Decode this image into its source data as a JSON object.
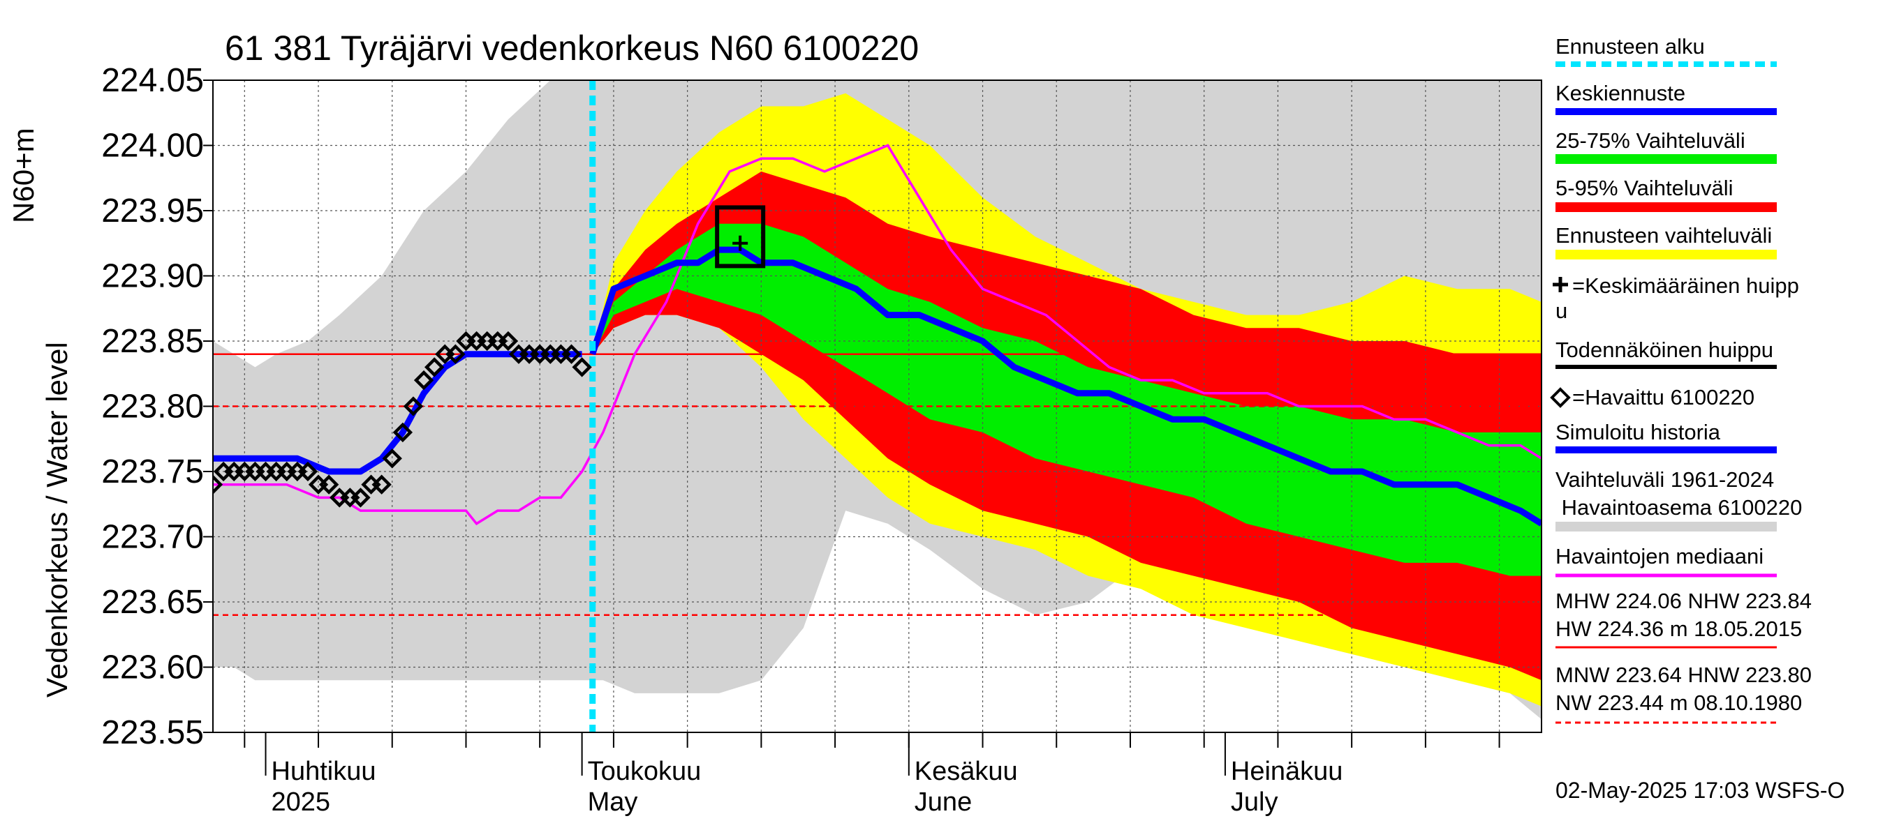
{
  "chart_data": {
    "type": "line",
    "title": "61 381 Tyräjärvi vedenkorkeus N60 6100220",
    "ylabel": [
      "Vedenkorkeus / Water level",
      "N60+m"
    ],
    "ylim": [
      223.55,
      224.05
    ],
    "yticks": [
      "223.55",
      "223.60",
      "223.65",
      "223.70",
      "223.75",
      "223.80",
      "223.85",
      "223.90",
      "223.95",
      "224.00",
      "224.05"
    ],
    "xlim": [
      "2025-03-27",
      "2025-07-31"
    ],
    "month_labels": [
      {
        "date": "2025-04-01",
        "fi": "Huhtikuu",
        "en": "2025"
      },
      {
        "date": "2025-05-01",
        "fi": "Toukokuu",
        "en": "May"
      },
      {
        "date": "2025-06-01",
        "fi": "Kesäkuu",
        "en": "June"
      },
      {
        "date": "2025-07-01",
        "fi": "Heinäkuu",
        "en": "July"
      }
    ],
    "forecast_start": "2025-05-02",
    "reference_lines": [
      {
        "label": "MHW",
        "value": 224.06,
        "style": "solid"
      },
      {
        "label": "NHW",
        "value": 223.84,
        "style": "solid"
      },
      {
        "label": "MNW",
        "value": 223.64,
        "style": "dashed"
      },
      {
        "label": "HNW",
        "value": 223.8,
        "style": "dashed"
      }
    ],
    "history_range": {
      "x": [
        "2025-03-27",
        "2025-03-29",
        "2025-03-31",
        "2025-04-02",
        "2025-04-05",
        "2025-04-08",
        "2025-04-12",
        "2025-04-16",
        "2025-04-20",
        "2025-04-24",
        "2025-04-28",
        "2025-04-30",
        "2025-05-01",
        "2025-05-03",
        "2025-05-06",
        "2025-05-10",
        "2025-05-14",
        "2025-05-18",
        "2025-05-22",
        "2025-05-26",
        "2025-05-30",
        "2025-06-03",
        "2025-06-08",
        "2025-06-13",
        "2025-06-18",
        "2025-06-23",
        "2025-06-28",
        "2025-07-03",
        "2025-07-08",
        "2025-07-13",
        "2025-07-18",
        "2025-07-23",
        "2025-07-28",
        "2025-07-31"
      ],
      "upper": [
        223.85,
        223.84,
        223.83,
        223.84,
        223.85,
        223.87,
        223.9,
        223.95,
        223.98,
        224.02,
        224.05,
        224.06,
        224.06,
        224.06,
        224.06,
        224.06,
        224.06,
        224.06,
        224.06,
        224.06,
        224.06,
        224.06,
        224.06,
        224.06,
        224.06,
        224.06,
        224.06,
        224.06,
        224.06,
        224.06,
        224.06,
        224.06,
        224.06,
        224.06
      ],
      "lower": [
        223.6,
        223.6,
        223.59,
        223.59,
        223.59,
        223.59,
        223.59,
        223.59,
        223.59,
        223.59,
        223.59,
        223.59,
        223.59,
        223.59,
        223.58,
        223.58,
        223.58,
        223.59,
        223.63,
        223.72,
        223.71,
        223.69,
        223.66,
        223.64,
        223.65,
        223.68,
        223.67,
        223.65,
        223.62,
        223.61,
        223.6,
        223.59,
        223.58,
        223.56
      ]
    },
    "forecast_range": {
      "x": [
        "2025-05-02",
        "2025-05-04",
        "2025-05-07",
        "2025-05-10",
        "2025-05-14",
        "2025-05-18",
        "2025-05-22",
        "2025-05-26",
        "2025-05-30",
        "2025-06-03",
        "2025-06-08",
        "2025-06-13",
        "2025-06-18",
        "2025-06-23",
        "2025-06-28",
        "2025-07-03",
        "2025-07-08",
        "2025-07-13",
        "2025-07-18",
        "2025-07-23",
        "2025-07-28",
        "2025-07-31"
      ],
      "upper": [
        223.84,
        223.91,
        223.95,
        223.98,
        224.01,
        224.03,
        224.03,
        224.04,
        224.02,
        224.0,
        223.96,
        223.93,
        223.91,
        223.89,
        223.88,
        223.87,
        223.87,
        223.88,
        223.9,
        223.89,
        223.89,
        223.88
      ],
      "lower": [
        223.84,
        223.86,
        223.87,
        223.87,
        223.86,
        223.83,
        223.79,
        223.76,
        223.73,
        223.71,
        223.7,
        223.69,
        223.67,
        223.66,
        223.64,
        223.63,
        223.62,
        223.61,
        223.6,
        223.59,
        223.58,
        223.57
      ]
    },
    "band_5_95": {
      "upper": [
        223.84,
        223.89,
        223.92,
        223.94,
        223.96,
        223.98,
        223.97,
        223.96,
        223.94,
        223.93,
        223.92,
        223.91,
        223.9,
        223.89,
        223.87,
        223.86,
        223.86,
        223.85,
        223.85,
        223.84,
        223.84,
        223.84
      ],
      "lower": [
        223.84,
        223.86,
        223.87,
        223.87,
        223.86,
        223.84,
        223.82,
        223.79,
        223.76,
        223.74,
        223.72,
        223.71,
        223.7,
        223.68,
        223.67,
        223.66,
        223.65,
        223.63,
        223.62,
        223.61,
        223.6,
        223.59
      ]
    },
    "band_25_75": {
      "upper": [
        223.84,
        223.88,
        223.9,
        223.92,
        223.94,
        223.94,
        223.93,
        223.91,
        223.89,
        223.88,
        223.86,
        223.85,
        223.83,
        223.82,
        223.81,
        223.8,
        223.8,
        223.79,
        223.79,
        223.78,
        223.78,
        223.78
      ],
      "lower": [
        223.84,
        223.87,
        223.88,
        223.89,
        223.88,
        223.87,
        223.85,
        223.83,
        223.81,
        223.79,
        223.78,
        223.76,
        223.75,
        223.74,
        223.73,
        223.71,
        223.7,
        223.69,
        223.68,
        223.68,
        223.67,
        223.67
      ]
    },
    "series": [
      {
        "name": "Havaittu 6100220",
        "color": "#000000",
        "marker": "diamond",
        "x": [
          "2025-03-27",
          "2025-03-28",
          "2025-03-29",
          "2025-03-30",
          "2025-03-31",
          "2025-04-01",
          "2025-04-02",
          "2025-04-03",
          "2025-04-04",
          "2025-04-05",
          "2025-04-06",
          "2025-04-07",
          "2025-04-08",
          "2025-04-09",
          "2025-04-10",
          "2025-04-11",
          "2025-04-12",
          "2025-04-13",
          "2025-04-14",
          "2025-04-15",
          "2025-04-16",
          "2025-04-17",
          "2025-04-18",
          "2025-04-19",
          "2025-04-20",
          "2025-04-21",
          "2025-04-22",
          "2025-04-23",
          "2025-04-24",
          "2025-04-25",
          "2025-04-26",
          "2025-04-27",
          "2025-04-28",
          "2025-04-29",
          "2025-04-30",
          "2025-05-01"
        ],
        "y": [
          223.74,
          223.75,
          223.75,
          223.75,
          223.75,
          223.75,
          223.75,
          223.75,
          223.75,
          223.75,
          223.74,
          223.74,
          223.73,
          223.73,
          223.73,
          223.74,
          223.74,
          223.76,
          223.78,
          223.8,
          223.82,
          223.83,
          223.84,
          223.84,
          223.85,
          223.85,
          223.85,
          223.85,
          223.85,
          223.84,
          223.84,
          223.84,
          223.84,
          223.84,
          223.84,
          223.83
        ]
      },
      {
        "name": "Simuloitu historia",
        "color": "#0000ff",
        "x": [
          "2025-03-27",
          "2025-03-31",
          "2025-04-04",
          "2025-04-07",
          "2025-04-10",
          "2025-04-12",
          "2025-04-14",
          "2025-04-16",
          "2025-04-18",
          "2025-04-20",
          "2025-04-22",
          "2025-04-25",
          "2025-04-28",
          "2025-05-01"
        ],
        "y": [
          223.76,
          223.76,
          223.76,
          223.75,
          223.75,
          223.76,
          223.78,
          223.81,
          223.83,
          223.84,
          223.84,
          223.84,
          223.84,
          223.84
        ]
      },
      {
        "name": "Keskiennuste",
        "color": "#0000ff",
        "x": [
          "2025-05-02",
          "2025-05-04",
          "2025-05-07",
          "2025-05-10",
          "2025-05-12",
          "2025-05-14",
          "2025-05-16",
          "2025-05-18",
          "2025-05-21",
          "2025-05-24",
          "2025-05-27",
          "2025-05-30",
          "2025-06-02",
          "2025-06-05",
          "2025-06-08",
          "2025-06-11",
          "2025-06-14",
          "2025-06-17",
          "2025-06-20",
          "2025-06-23",
          "2025-06-26",
          "2025-06-29",
          "2025-07-02",
          "2025-07-05",
          "2025-07-08",
          "2025-07-11",
          "2025-07-14",
          "2025-07-17",
          "2025-07-20",
          "2025-07-23",
          "2025-07-26",
          "2025-07-29",
          "2025-07-31"
        ],
        "y": [
          223.84,
          223.89,
          223.9,
          223.91,
          223.91,
          223.92,
          223.92,
          223.91,
          223.91,
          223.9,
          223.89,
          223.87,
          223.87,
          223.86,
          223.85,
          223.83,
          223.82,
          223.81,
          223.81,
          223.8,
          223.79,
          223.79,
          223.78,
          223.77,
          223.76,
          223.75,
          223.75,
          223.74,
          223.74,
          223.74,
          223.73,
          223.72,
          223.71
        ]
      },
      {
        "name": "Havaintojen mediaani",
        "color": "#ff00ff",
        "x": [
          "2025-03-27",
          "2025-03-30",
          "2025-04-03",
          "2025-04-06",
          "2025-04-08",
          "2025-04-10",
          "2025-04-14",
          "2025-04-18",
          "2025-04-20",
          "2025-04-21",
          "2025-04-23",
          "2025-04-25",
          "2025-04-27",
          "2025-04-29",
          "2025-05-01",
          "2025-05-03",
          "2025-05-06",
          "2025-05-09",
          "2025-05-12",
          "2025-05-15",
          "2025-05-18",
          "2025-05-21",
          "2025-05-24",
          "2025-05-27",
          "2025-05-30",
          "2025-06-02",
          "2025-06-05",
          "2025-06-08",
          "2025-06-11",
          "2025-06-14",
          "2025-06-17",
          "2025-06-20",
          "2025-06-23",
          "2025-06-26",
          "2025-06-29",
          "2025-07-02",
          "2025-07-05",
          "2025-07-08",
          "2025-07-11",
          "2025-07-14",
          "2025-07-17",
          "2025-07-20",
          "2025-07-23",
          "2025-07-26",
          "2025-07-29",
          "2025-07-31"
        ],
        "y": [
          223.74,
          223.74,
          223.74,
          223.73,
          223.73,
          223.72,
          223.72,
          223.72,
          223.72,
          223.71,
          223.72,
          223.72,
          223.73,
          223.73,
          223.75,
          223.78,
          223.84,
          223.88,
          223.94,
          223.98,
          223.99,
          223.99,
          223.98,
          223.99,
          224.0,
          223.96,
          223.92,
          223.89,
          223.88,
          223.87,
          223.85,
          223.83,
          223.82,
          223.82,
          223.81,
          223.81,
          223.81,
          223.8,
          223.8,
          223.8,
          223.79,
          223.79,
          223.78,
          223.77,
          223.77,
          223.76
        ]
      }
    ],
    "probable_peak": {
      "x": "2025-05-16",
      "y": 223.93
    },
    "mean_peak": {
      "x": "2025-05-16",
      "y": 223.925
    },
    "legend": [
      "Ennusteen alku",
      "Keskiennuste",
      "25-75% Vaihteluväli",
      "5-95% Vaihteluväli",
      "Ennusteen vaihteluväli",
      "=Keskimääräinen huipp",
      "u",
      "Todennäköinen huippu",
      "=Havaittu 6100220",
      "Simuloitu historia",
      "Vaihteluväli 1961-2024",
      " Havaintoasema 6100220",
      "Havaintojen mediaani",
      "MHW 224.06 NHW 223.84",
      "HW 224.36 m 18.05.2015",
      "MNW 223.64 HNW 223.80",
      "NW 223.44 m 08.10.1980"
    ],
    "timestamp": "02-May-2025 17:03 WSFS-O",
    "colors": {
      "history_range": "#d3d3d3",
      "forecast_range": "#ffff00",
      "band_5_95": "#ff0000",
      "band_25_75": "#00ee00",
      "forecast_median": "#0000ff",
      "observed": "#000000",
      "median": "#ff00ff",
      "forecast_start": "#00e5ff",
      "reference": "#ff0000"
    },
    "grid": true,
    "legend_position": "right"
  }
}
